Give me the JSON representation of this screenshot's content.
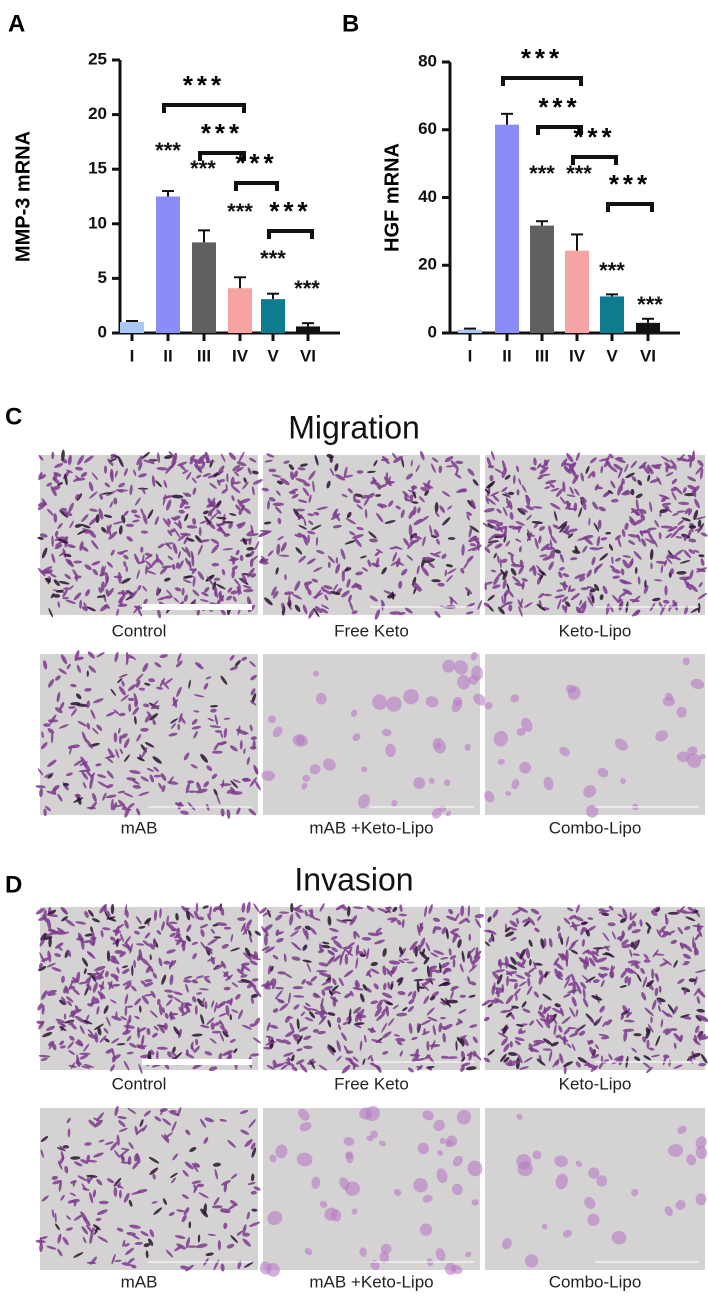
{
  "chart_data": [
    {
      "type": "bar",
      "panel": "A",
      "y_label": "MMP-3 mRNA",
      "categories": [
        "I",
        "II",
        "III",
        "IV",
        "V",
        "VI"
      ],
      "values": [
        1.0,
        12.5,
        8.3,
        4.1,
        3.1,
        0.6
      ],
      "errors": [
        0.1,
        0.5,
        1.1,
        1.0,
        0.5,
        0.3
      ],
      "colors": [
        "#a9c8f5",
        "#8c8cf6",
        "#606060",
        "#f5a3a3",
        "#0f7b8e",
        "#111111"
      ],
      "significance": [
        null,
        "***",
        "***",
        "***",
        "***",
        "***"
      ],
      "comparisons": [
        "***",
        "***",
        "***",
        "***"
      ],
      "ylim": [
        0,
        25
      ],
      "yticks": [
        0,
        5,
        10,
        15,
        20,
        25
      ]
    },
    {
      "type": "bar",
      "panel": "B",
      "y_label": "HGF mRNA",
      "categories": [
        "I",
        "II",
        "III",
        "IV",
        "V",
        "VI"
      ],
      "values": [
        1.0,
        61.5,
        31.7,
        24.3,
        10.8,
        3.0
      ],
      "errors": [
        0.3,
        3.2,
        1.3,
        4.8,
        0.6,
        1.2
      ],
      "colors": [
        "#a9c8f5",
        "#8c8cf6",
        "#606060",
        "#f5a3a3",
        "#0f7b8e",
        "#111111"
      ],
      "significance": [
        null,
        null,
        "***",
        "***",
        "***",
        "***"
      ],
      "comparisons": [
        "***",
        "***",
        "***",
        "***"
      ],
      "ylim": [
        0,
        80
      ],
      "yticks": [
        0,
        20,
        40,
        60,
        80
      ]
    }
  ],
  "panels": [
    {
      "label": "C",
      "title": "Migration",
      "captions": [
        "Control",
        "Free Keto",
        "Keto-Lipo",
        "mAB",
        "mAB +Keto-Lipo",
        "Combo-Lipo"
      ]
    },
    {
      "label": "D",
      "title": "Invasion",
      "captions": [
        "Control",
        "Free Keto",
        "Keto-Lipo",
        "mAB",
        "mAB +Keto-Lipo",
        "Combo-Lipo"
      ]
    }
  ]
}
